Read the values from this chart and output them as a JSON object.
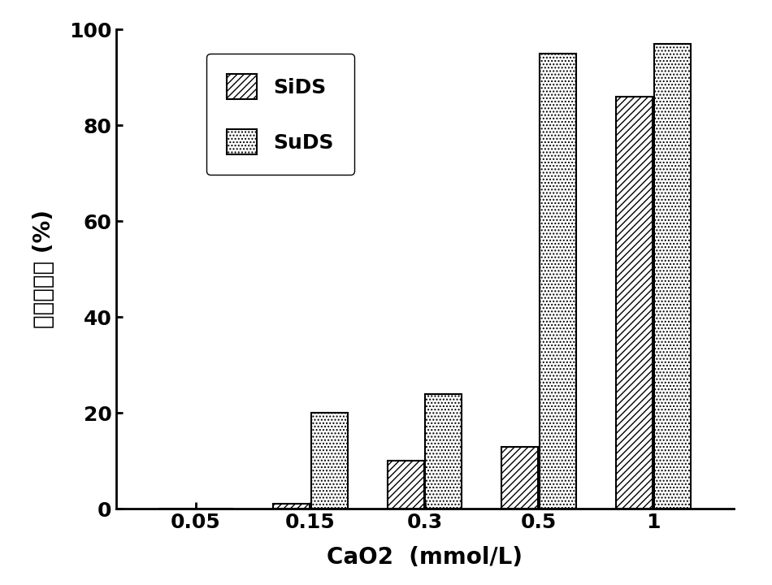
{
  "categories_pos": [
    0,
    1,
    2,
    3,
    4
  ],
  "category_labels": [
    "0.05",
    "0.15",
    "0.3",
    "0.5",
    "1"
  ],
  "SiDS_values": [
    0,
    1,
    10,
    13,
    86
  ],
  "SuDS_values": [
    0,
    20,
    24,
    95,
    97
  ],
  "ylabel": "藻类去除率 (%)",
  "xlabel": "CaO2  (mmol/L)",
  "ylim": [
    0,
    100
  ],
  "yticks": [
    0,
    20,
    40,
    60,
    80,
    100
  ],
  "legend_labels": [
    "SiDS",
    "SuDS"
  ],
  "bar_width": 0.32,
  "label_fontsize": 20,
  "tick_fontsize": 18,
  "legend_fontsize": 18,
  "facecolor": "#ffffff",
  "SiDS_hatch": "////",
  "SuDS_hatch": "....",
  "bar_edgecolor": "#000000",
  "bar_facecolor": "#ffffff"
}
